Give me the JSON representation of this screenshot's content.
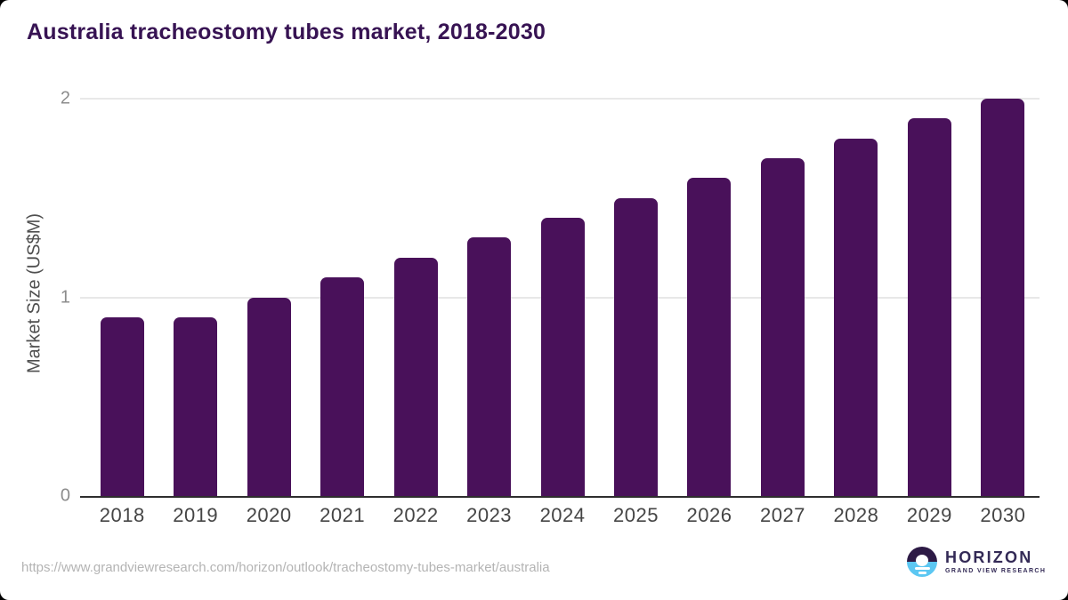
{
  "chart_data": {
    "type": "bar",
    "title": "Australia tracheostomy tubes market, 2018-2030",
    "categories": [
      "2018",
      "2019",
      "2020",
      "2021",
      "2022",
      "2023",
      "2024",
      "2025",
      "2026",
      "2027",
      "2028",
      "2029",
      "2030"
    ],
    "values": [
      0.9,
      0.9,
      1.0,
      1.1,
      1.2,
      1.3,
      1.4,
      1.5,
      1.6,
      1.7,
      1.8,
      1.9,
      2.0
    ],
    "xlabel": "",
    "ylabel": "Market Size (US$M)",
    "ylim": [
      0,
      2
    ],
    "yticks": [
      0,
      1,
      2
    ],
    "grid": "horizontal",
    "legend": "none",
    "bar_color": "#49115a"
  },
  "footer": {
    "source_url": "https://www.grandviewresearch.com/horizon/outlook/tracheostomy-tubes-market/australia",
    "logo": {
      "brand": "HORIZON",
      "tagline": "GRAND VIEW RESEARCH"
    }
  },
  "colors": {
    "title_text": "#371353",
    "bar": "#49115a",
    "axis_line": "#2e2e2e",
    "gridline": "#e8e8e8",
    "ytick_text": "#8c8c8c",
    "xtick_text": "#454545",
    "ylabel_text": "#4f4f4f",
    "url_text": "#b4b4b4",
    "logo_text": "#332a56",
    "logo_purple": "#2d1a45",
    "logo_blue": "#5cc7f2"
  }
}
